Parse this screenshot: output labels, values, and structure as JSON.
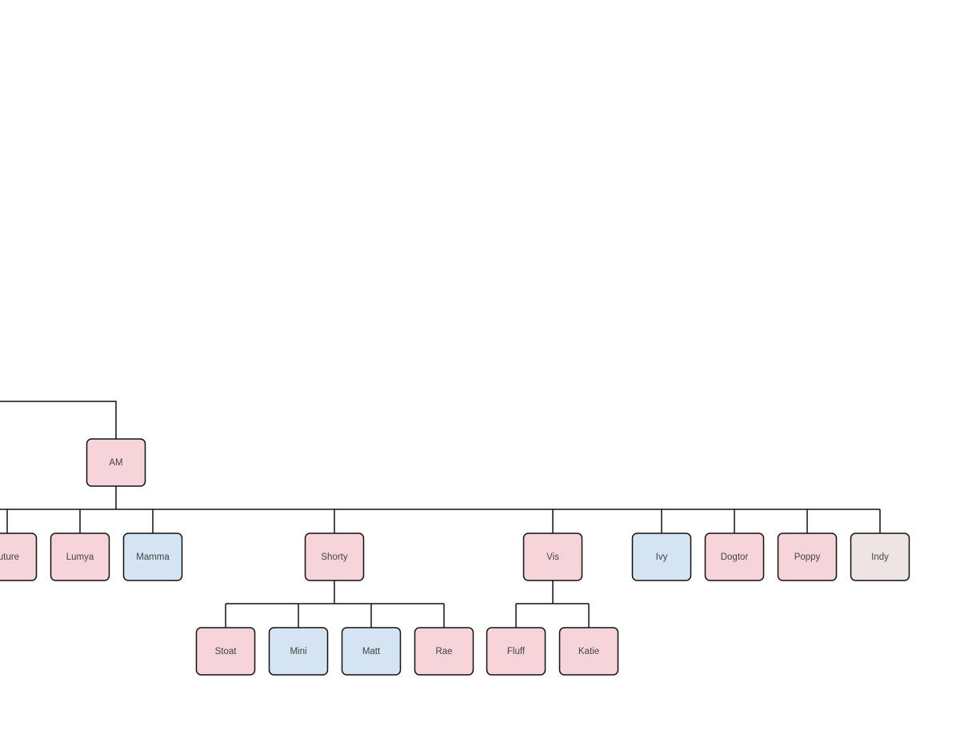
{
  "nodes": [
    {
      "label": "AM"
    },
    {
      "label": "uture"
    },
    {
      "label": "Lumya"
    },
    {
      "label": "Mamma"
    },
    {
      "label": "Shorty"
    },
    {
      "label": "Vis"
    },
    {
      "label": "Ivy"
    },
    {
      "label": "Dogtor"
    },
    {
      "label": "Poppy"
    },
    {
      "label": "Indy"
    },
    {
      "label": "Stoat"
    },
    {
      "label": "Mini"
    },
    {
      "label": "Matt"
    },
    {
      "label": "Rae"
    },
    {
      "label": "Fluff"
    },
    {
      "label": "Katie"
    }
  ]
}
